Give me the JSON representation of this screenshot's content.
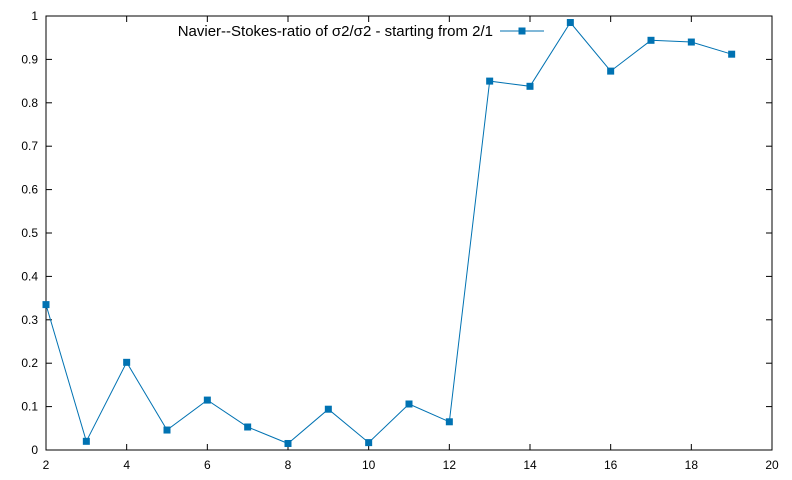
{
  "chart_data": {
    "type": "line",
    "title": "",
    "xlabel": "",
    "ylabel": "",
    "xlim": [
      2,
      20
    ],
    "ylim": [
      0,
      1
    ],
    "xticks": [
      2,
      4,
      6,
      8,
      10,
      12,
      14,
      16,
      18,
      20
    ],
    "xtick_labels": [
      "2",
      "4",
      "6",
      "8",
      "10",
      "12",
      "14",
      "16",
      "18",
      "20"
    ],
    "yticks": [
      0,
      0.1,
      0.2,
      0.3,
      0.4,
      0.5,
      0.6,
      0.7,
      0.8,
      0.9,
      1
    ],
    "ytick_labels": [
      "0",
      "0.1",
      "0.2",
      "0.3",
      "0.4",
      "0.5",
      "0.6",
      "0.7",
      "0.8",
      "0.9",
      "1"
    ],
    "grid": false,
    "legend_position": "top-center",
    "series": [
      {
        "name": "Navier--Stokes-ratio of σ2/σ2 - starting from 2/1",
        "color": "#0072b2",
        "marker": "square",
        "x": [
          2,
          3,
          4,
          5,
          6,
          7,
          8,
          9,
          10,
          11,
          12,
          13,
          14,
          15,
          16,
          17,
          18,
          19
        ],
        "y": [
          0.335,
          0.02,
          0.202,
          0.046,
          0.115,
          0.053,
          0.015,
          0.094,
          0.017,
          0.106,
          0.065,
          0.85,
          0.838,
          0.985,
          0.873,
          0.944,
          0.94,
          0.912
        ]
      }
    ]
  }
}
